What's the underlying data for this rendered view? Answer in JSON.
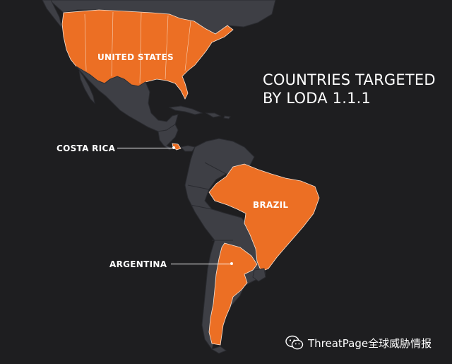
{
  "title": {
    "line1": "COUNTRIES TARGETED",
    "line2": "BY LODA 1.1.1"
  },
  "countries": {
    "united_states": "UNITED STATES",
    "costa_rica": "COSTA RICA",
    "brazil": "BRAZIL",
    "argentina": "ARGENTINA"
  },
  "colors": {
    "background": "#1e1e20",
    "land": "#3e3f45",
    "targeted": "#ec6f24",
    "label": "#ffffff"
  },
  "watermark": {
    "icon": "wechat-icon",
    "text": "ThreatPage全球威胁情报"
  }
}
